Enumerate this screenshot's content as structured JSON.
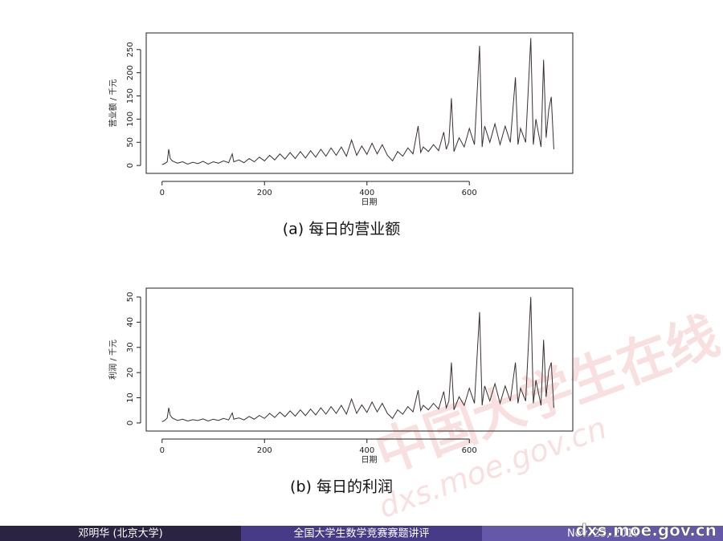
{
  "chart_data": [
    {
      "type": "line",
      "caption": "(a) 每日的营业额",
      "xlabel": "日期",
      "ylabel": "营业额 / 千元",
      "xlim": [
        -31,
        802
      ],
      "ylim": [
        -17,
        286
      ],
      "xticks": [
        0,
        200,
        400,
        600
      ],
      "yticks": [
        0,
        50,
        100,
        150,
        200,
        250
      ],
      "x": [
        0,
        5,
        10,
        13,
        16,
        20,
        30,
        40,
        50,
        60,
        70,
        80,
        90,
        100,
        110,
        120,
        130,
        137,
        140,
        150,
        160,
        170,
        180,
        190,
        200,
        210,
        220,
        230,
        240,
        250,
        260,
        270,
        280,
        290,
        300,
        310,
        320,
        330,
        340,
        350,
        360,
        370,
        380,
        390,
        400,
        410,
        420,
        430,
        440,
        450,
        460,
        470,
        480,
        490,
        500,
        505,
        510,
        520,
        530,
        540,
        550,
        555,
        560,
        565,
        570,
        580,
        590,
        600,
        610,
        620,
        625,
        630,
        640,
        650,
        660,
        670,
        680,
        690,
        695,
        700,
        710,
        720,
        725,
        730,
        740,
        745,
        750,
        755,
        760,
        765
      ],
      "series": [
        {
          "color": "#3a3030",
          "values": [
            2,
            4,
            8,
            35,
            15,
            10,
            5,
            8,
            3,
            7,
            4,
            9,
            3,
            8,
            5,
            10,
            6,
            25,
            8,
            12,
            6,
            15,
            8,
            18,
            10,
            22,
            12,
            25,
            14,
            28,
            15,
            30,
            16,
            32,
            18,
            35,
            20,
            38,
            22,
            40,
            20,
            55,
            22,
            42,
            24,
            48,
            25,
            45,
            22,
            10,
            30,
            20,
            38,
            25,
            85,
            28,
            40,
            30,
            45,
            32,
            72,
            35,
            50,
            145,
            30,
            60,
            40,
            80,
            45,
            258,
            40,
            85,
            50,
            90,
            45,
            85,
            50,
            190,
            45,
            80,
            50,
            275,
            45,
            100,
            40,
            228,
            60,
            120,
            148,
            35
          ]
        }
      ]
    },
    {
      "type": "line",
      "caption": "(b) 每日的利润",
      "xlabel": "日期",
      "ylabel": "利润 / 千元",
      "xlim": [
        -31,
        802
      ],
      "ylim": [
        -3.2,
        53.5
      ],
      "xticks": [
        0,
        200,
        400,
        600
      ],
      "yticks": [
        0,
        10,
        20,
        30,
        40,
        50
      ],
      "x": [
        0,
        5,
        10,
        13,
        16,
        20,
        30,
        40,
        50,
        60,
        70,
        80,
        90,
        100,
        110,
        120,
        130,
        137,
        140,
        150,
        160,
        170,
        180,
        190,
        200,
        210,
        220,
        230,
        240,
        250,
        260,
        270,
        280,
        290,
        300,
        310,
        320,
        330,
        340,
        350,
        360,
        370,
        380,
        390,
        400,
        410,
        420,
        430,
        440,
        450,
        460,
        470,
        480,
        490,
        500,
        505,
        510,
        520,
        530,
        540,
        550,
        555,
        560,
        565,
        570,
        580,
        590,
        600,
        610,
        620,
        625,
        630,
        640,
        650,
        660,
        670,
        680,
        690,
        695,
        700,
        710,
        720,
        725,
        730,
        740,
        745,
        750,
        755,
        760,
        765
      ],
      "series": [
        {
          "color": "#3a3030",
          "values": [
            0.5,
            1,
            2,
            6,
            3,
            2,
            1,
            1.5,
            0.8,
            1.3,
            1,
            1.6,
            0.8,
            1.5,
            1,
            1.8,
            1.2,
            4,
            1.5,
            2,
            1.2,
            2.6,
            1.5,
            3,
            1.8,
            3.8,
            2.2,
            4.3,
            2.5,
            4.8,
            2.7,
            5.2,
            2.9,
            5.5,
            3.2,
            6,
            3.5,
            6.5,
            3.8,
            7,
            3.5,
            9.5,
            3.8,
            7.2,
            4.2,
            8.3,
            4.4,
            7.8,
            3.8,
            1.8,
            5.2,
            3.5,
            6.5,
            4.4,
            13,
            4.9,
            7,
            5.2,
            7.8,
            5.5,
            12.5,
            6,
            8.7,
            24,
            5.2,
            10.4,
            7,
            13.8,
            7.8,
            44,
            7,
            14.7,
            8.7,
            15.6,
            7.8,
            14.7,
            8.7,
            24,
            7.8,
            13.8,
            8.7,
            50,
            7.8,
            17,
            7,
            33,
            10.4,
            20.8,
            24,
            6
          ]
        }
      ]
    }
  ],
  "footer": {
    "author": "邓明华 (北京大学)",
    "title": "全国大学生数学竞赛赛题讲评",
    "date": "Nov. 23, 2019"
  },
  "watermark": {
    "logo": "中国大学生在线",
    "url": "dxs.moe.gov.cn"
  }
}
